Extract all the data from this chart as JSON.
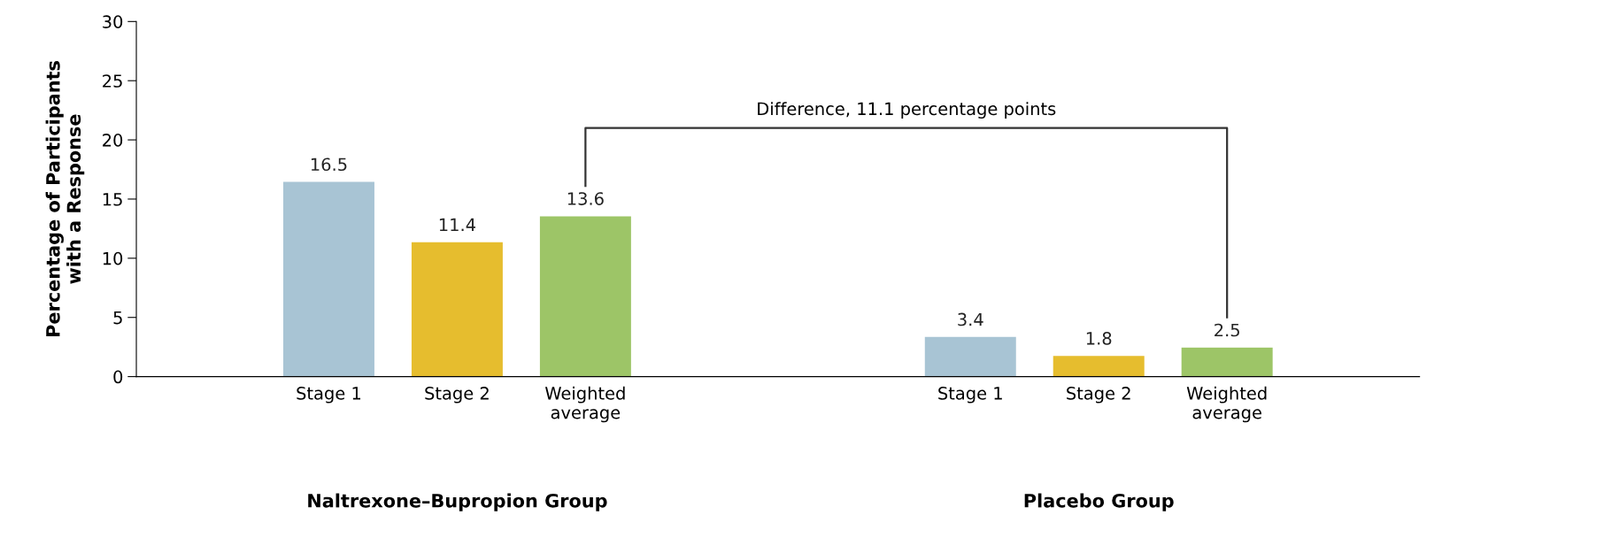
{
  "chart_data": {
    "type": "bar",
    "ylabel": "Percentage of Participants\nwith a Response",
    "categories": [
      null,
      "Stage 1",
      "Stage 2",
      "Weighted\naverage",
      null,
      null,
      "Stage 1",
      "Stage 2",
      "Weighted\naverage",
      null
    ],
    "values": [
      null,
      16.5,
      11.4,
      13.6,
      null,
      null,
      3.4,
      1.8,
      2.5,
      null
    ],
    "colors": [
      "#a8c4d4",
      "#a8c4d4",
      "#e6bd2e",
      "#9dc567",
      "#a8c4d4",
      "#a8c4d4",
      "#a8c4d4",
      "#e6bd2e",
      "#9dc567",
      "#a8c4d4"
    ],
    "ylim": [
      0,
      30
    ],
    "yticks": [
      0,
      5,
      10,
      15,
      20,
      25,
      30
    ],
    "data_labels": true,
    "grid": false,
    "legend": false,
    "annotations": [
      "Difference, 11.1 percentage points",
      "Naltrexone–Bupropion Group",
      "Placebo Group"
    ]
  }
}
